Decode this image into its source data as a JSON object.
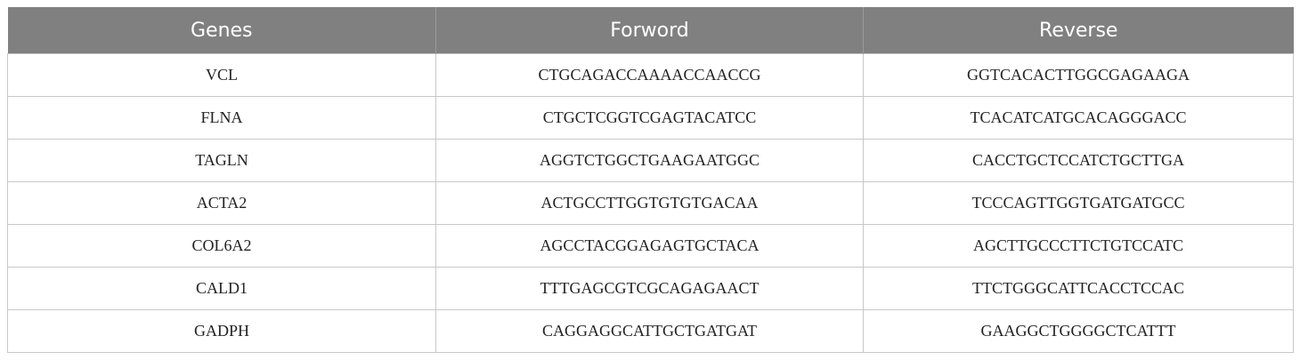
{
  "table": {
    "headers": [
      "Genes",
      "Forword",
      "Reverse"
    ],
    "rows": [
      [
        "VCL",
        "CTGCAGACCAAAACCAACCG",
        "GGTCACACTTGGCGAGAAGA"
      ],
      [
        "FLNA",
        "CTGCTCGGTCGAGTACATCC",
        "TCACATCATGCACAGGGACC"
      ],
      [
        "TAGLN",
        "AGGTCTGGCTGAAGAATGGC",
        "CACCTGCTCCATCTGCTTGA"
      ],
      [
        "ACTA2",
        "ACTGCCTTGGTGTGTGACAA",
        "TCCCAGTTGGTGATGATGCC"
      ],
      [
        "COL6A2",
        "AGCCTACGGAGAGTGCTACA",
        "AGCTTGCCCTTCTGTCCATC"
      ],
      [
        "CALD1",
        "TTTGAGCGTCGCAGAGAACT",
        "TTCTGGGCATTCACCTCCAC"
      ],
      [
        "GADPH",
        "CAGGAGGCATTGCTGATGAT",
        "GAAGGCTGGGGCTCATTT"
      ]
    ],
    "header_color": "#808080"
  }
}
